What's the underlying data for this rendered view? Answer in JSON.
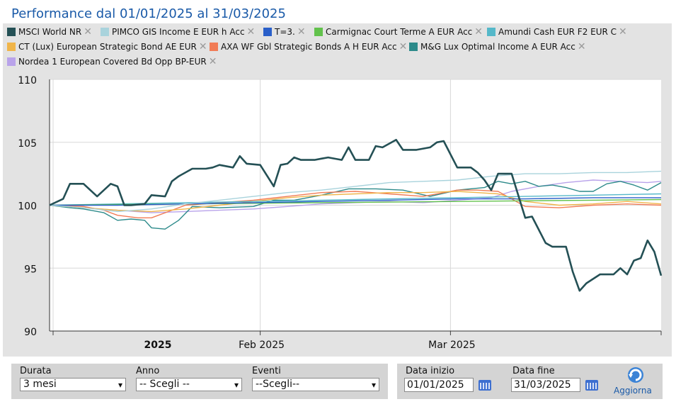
{
  "title": "Performance dal 01/01/2025 al 31/03/2025",
  "remove_glyph": "✕",
  "chart_data": {
    "type": "line",
    "ylim": [
      90,
      110
    ],
    "yticks": [
      90,
      95,
      100,
      105,
      110
    ],
    "x_range": [
      0,
      90
    ],
    "x_ticks": [
      {
        "label": "2025",
        "x": 0,
        "bold": true
      },
      {
        "label": "Feb 2025",
        "x": 31,
        "bold": false
      },
      {
        "label": "Mar 2025",
        "x": 59,
        "bold": false
      }
    ],
    "series": [
      {
        "name": "MSCI World NR",
        "color": "#245055",
        "width": 2.6,
        "x": [
          0,
          2,
          3,
          5,
          7,
          9,
          10,
          11,
          12,
          14,
          15,
          17,
          18,
          19,
          21,
          23,
          24,
          25,
          27,
          28,
          29,
          31,
          33,
          34,
          35,
          36,
          37,
          39,
          40,
          41,
          43,
          44,
          45,
          47,
          48,
          49,
          51,
          52,
          54,
          56,
          57,
          58,
          60,
          61,
          62,
          63,
          64,
          65,
          66,
          67,
          68,
          70,
          71,
          73,
          74,
          75,
          76,
          77,
          78,
          79,
          81,
          82,
          83,
          84,
          85,
          86,
          87,
          88,
          89,
          90
        ],
        "values": [
          100,
          100.5,
          101.7,
          101.7,
          100.7,
          101.7,
          101.5,
          100,
          100,
          100.1,
          100.8,
          100.7,
          101.9,
          102.3,
          102.9,
          102.9,
          103.0,
          103.2,
          103.0,
          103.9,
          103.3,
          103.2,
          101.5,
          103.2,
          103.3,
          103.8,
          103.6,
          103.6,
          103.7,
          103.8,
          103.6,
          104.6,
          103.6,
          103.6,
          104.7,
          104.6,
          105.2,
          104.4,
          104.4,
          104.6,
          105.0,
          105.1,
          103.0,
          103.0,
          103.0,
          102.6,
          102.0,
          101.2,
          102.5,
          102.5,
          102.5,
          99.0,
          99.1,
          97.0,
          96.7,
          96.7,
          96.7,
          94.7,
          93.2,
          93.8,
          94.5,
          94.5,
          94.5,
          95.0,
          94.5,
          95.6,
          95.8,
          97.2,
          96.3,
          94.4
        ]
      },
      {
        "name": "PIMCO GIS Income E EUR h Acc",
        "color": "#a9d3dc",
        "width": 1.4,
        "x": [
          0,
          5,
          10,
          15,
          20,
          25,
          30,
          35,
          40,
          45,
          50,
          55,
          60,
          65,
          70,
          75,
          80,
          85,
          90
        ],
        "values": [
          100,
          99.8,
          99.5,
          99.7,
          100.1,
          100.4,
          100.7,
          101.0,
          101.2,
          101.5,
          101.8,
          101.9,
          102.0,
          102.3,
          102.5,
          102.5,
          102.6,
          102.6,
          102.7
        ]
      },
      {
        "name": "T=3.",
        "color": "#2a5fc9",
        "width": 1.4,
        "x": [
          0,
          10,
          20,
          30,
          40,
          50,
          60,
          70,
          80,
          90
        ],
        "values": [
          100,
          100,
          100.1,
          100.2,
          100.3,
          100.4,
          100.5,
          100.5,
          100.6,
          100.6
        ]
      },
      {
        "name": "Carmignac Court Terme A EUR Acc",
        "color": "#62c24c",
        "width": 1.4,
        "x": [
          0,
          10,
          20,
          30,
          40,
          50,
          60,
          70,
          80,
          90
        ],
        "values": [
          100,
          100.05,
          100.1,
          100.15,
          100.2,
          100.25,
          100.3,
          100.35,
          100.4,
          100.45
        ]
      },
      {
        "name": "Amundi Cash EUR F2 EUR C",
        "color": "#55b8c9",
        "width": 1.4,
        "x": [
          0,
          10,
          20,
          30,
          40,
          50,
          60,
          70,
          80,
          90
        ],
        "values": [
          100,
          100.1,
          100.2,
          100.3,
          100.4,
          100.5,
          100.6,
          100.7,
          100.8,
          100.9
        ]
      },
      {
        "name": "CT (Lux) European Strategic Bond AE EUR",
        "color": "#f0b54a",
        "width": 1.4,
        "x": [
          0,
          5,
          10,
          15,
          20,
          25,
          30,
          35,
          40,
          45,
          50,
          55,
          60,
          63,
          66,
          70,
          75,
          80,
          85,
          90
        ],
        "values": [
          100,
          99.8,
          99.6,
          99.5,
          99.7,
          100.0,
          100.3,
          100.6,
          100.8,
          100.9,
          101.0,
          101.0,
          101.1,
          101.0,
          100.9,
          100.3,
          100.0,
          100.1,
          100.3,
          100.1
        ]
      },
      {
        "name": "AXA WF Gbl Strategic Bonds A H EUR Acc",
        "color": "#f17c56",
        "width": 1.4,
        "x": [
          0,
          5,
          8,
          10,
          13,
          15,
          18,
          20,
          25,
          30,
          35,
          40,
          45,
          50,
          55,
          60,
          63,
          66,
          70,
          75,
          80,
          85,
          90
        ],
        "values": [
          100,
          99.9,
          99.6,
          99.2,
          99.0,
          99.0,
          99.6,
          100.0,
          100.2,
          100.4,
          100.7,
          101.0,
          101.1,
          100.9,
          100.7,
          101.2,
          101.2,
          101.1,
          99.9,
          99.8,
          100.0,
          100.1,
          100.0
        ]
      },
      {
        "name": "M&G Lux Optimal Income A EUR Acc",
        "color": "#2c8a8a",
        "width": 1.4,
        "x": [
          0,
          3,
          5,
          8,
          10,
          12,
          14,
          15,
          17,
          19,
          21,
          25,
          30,
          33,
          36,
          40,
          44,
          48,
          52,
          56,
          60,
          64,
          66,
          68,
          70,
          72,
          74,
          76,
          78,
          80,
          82,
          84,
          86,
          88,
          90
        ],
        "values": [
          100,
          99.8,
          99.7,
          99.4,
          98.8,
          98.9,
          98.8,
          98.2,
          98.1,
          98.8,
          99.9,
          99.8,
          99.9,
          100.4,
          100.4,
          100.8,
          101.3,
          101.3,
          101.2,
          100.7,
          101.2,
          101.4,
          101.9,
          101.7,
          101.9,
          101.5,
          101.6,
          101.4,
          101.1,
          101.1,
          101.7,
          101.9,
          101.6,
          101.2,
          101.8
        ]
      },
      {
        "name": "Nordea 1 European Covered Bd Opp BP-EUR",
        "color": "#b9a3ea",
        "width": 1.4,
        "x": [
          0,
          5,
          10,
          15,
          20,
          25,
          30,
          35,
          40,
          45,
          50,
          55,
          60,
          65,
          68,
          72,
          76,
          80,
          84,
          88,
          90
        ],
        "values": [
          100,
          99.8,
          99.6,
          99.4,
          99.5,
          99.6,
          99.7,
          99.9,
          100.1,
          100.2,
          100.3,
          100.2,
          100.4,
          100.6,
          101.1,
          101.5,
          101.8,
          102.0,
          101.9,
          101.8,
          101.9
        ]
      }
    ]
  },
  "legend_items": [
    {
      "label": "MSCI World NR",
      "color": "#245055"
    },
    {
      "label": "PIMCO GIS Income E EUR h Acc",
      "color": "#a9d3dc"
    },
    {
      "label": "T=3.",
      "color": "#2a5fc9"
    },
    {
      "label": "Carmignac Court Terme A EUR Acc",
      "color": "#62c24c"
    },
    {
      "label": "Amundi Cash EUR F2 EUR C",
      "color": "#55b8c9"
    },
    {
      "label": "CT (Lux) European Strategic Bond AE EUR",
      "color": "#f0b54a"
    },
    {
      "label": "AXA WF Gbl Strategic Bonds A H EUR Acc",
      "color": "#f17c56"
    },
    {
      "label": "M&G Lux Optimal Income A EUR Acc",
      "color": "#2c8a8a"
    },
    {
      "label": "Nordea 1 European Covered Bd Opp BP-EUR",
      "color": "#b9a3ea"
    }
  ],
  "controls": {
    "durata": {
      "label": "Durata",
      "value": "3 mesi"
    },
    "anno": {
      "label": "Anno",
      "value": "-- Scegli --"
    },
    "eventi": {
      "label": "Eventi",
      "value": "--Scegli--"
    },
    "data_inizio": {
      "label": "Data inizio",
      "value": "01/01/2025"
    },
    "data_fine": {
      "label": "Data fine",
      "value": "31/03/2025"
    },
    "refresh_label": "Aggiorna",
    "calendar_icon": "calendar-icon",
    "refresh_icon": "refresh-icon",
    "dropdown_icon": "chevron-down-icon"
  }
}
